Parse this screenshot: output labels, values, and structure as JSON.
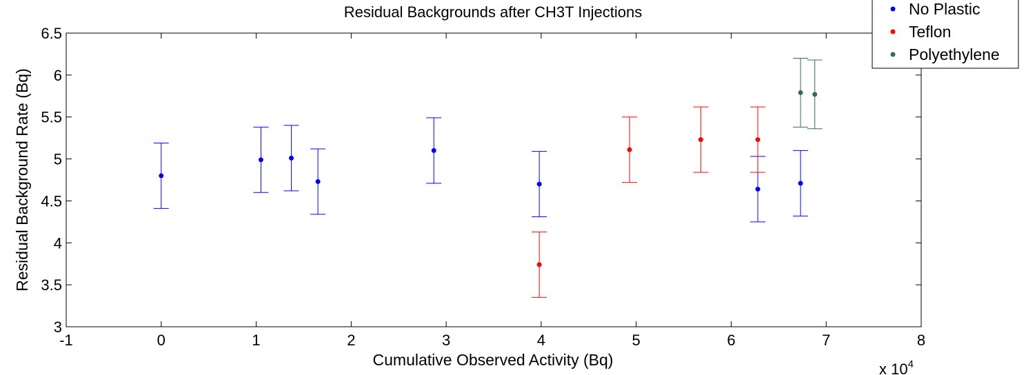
{
  "chart_data": {
    "type": "scatter",
    "title": "Residual Backgrounds after CH3T Injections",
    "xlabel": "Cumulative Observed Activity (Bq)",
    "ylabel": "Residual Background Rate (Bq)",
    "x_multiplier_label": "x 10",
    "x_multiplier_exponent": "4",
    "xlim": [
      -1,
      8
    ],
    "ylim": [
      3,
      6.5
    ],
    "x_ticks": [
      "-1",
      "0",
      "1",
      "2",
      "3",
      "4",
      "5",
      "6",
      "7",
      "8"
    ],
    "y_ticks": [
      "3",
      "3.5",
      "4",
      "4.5",
      "5",
      "5.5",
      "6",
      "6.5"
    ],
    "grid": false,
    "legend_position": "top-right",
    "error_bars": true,
    "series": [
      {
        "name": "No Plastic",
        "color": "#0000ff",
        "points": [
          {
            "x": 0.0,
            "y": 4.8,
            "err": 0.39
          },
          {
            "x": 1.05,
            "y": 4.99,
            "err": 0.39
          },
          {
            "x": 1.37,
            "y": 5.01,
            "err": 0.39
          },
          {
            "x": 1.65,
            "y": 4.73,
            "err": 0.39
          },
          {
            "x": 2.87,
            "y": 5.1,
            "err": 0.39
          },
          {
            "x": 3.98,
            "y": 4.7,
            "err": 0.39
          },
          {
            "x": 6.28,
            "y": 4.64,
            "err": 0.39
          },
          {
            "x": 6.73,
            "y": 4.71,
            "err": 0.39
          }
        ]
      },
      {
        "name": "Teflon",
        "color": "#ff0000",
        "points": [
          {
            "x": 3.98,
            "y": 3.74,
            "err": 0.39
          },
          {
            "x": 4.93,
            "y": 5.11,
            "err": 0.39
          },
          {
            "x": 5.68,
            "y": 5.23,
            "err": 0.39
          },
          {
            "x": 6.28,
            "y": 5.23,
            "err": 0.39
          }
        ]
      },
      {
        "name": "Polyethylene",
        "color": "#2f6f4f",
        "points": [
          {
            "x": 6.73,
            "y": 5.79,
            "err": 0.41
          },
          {
            "x": 6.88,
            "y": 5.77,
            "err": 0.41
          }
        ]
      }
    ]
  }
}
